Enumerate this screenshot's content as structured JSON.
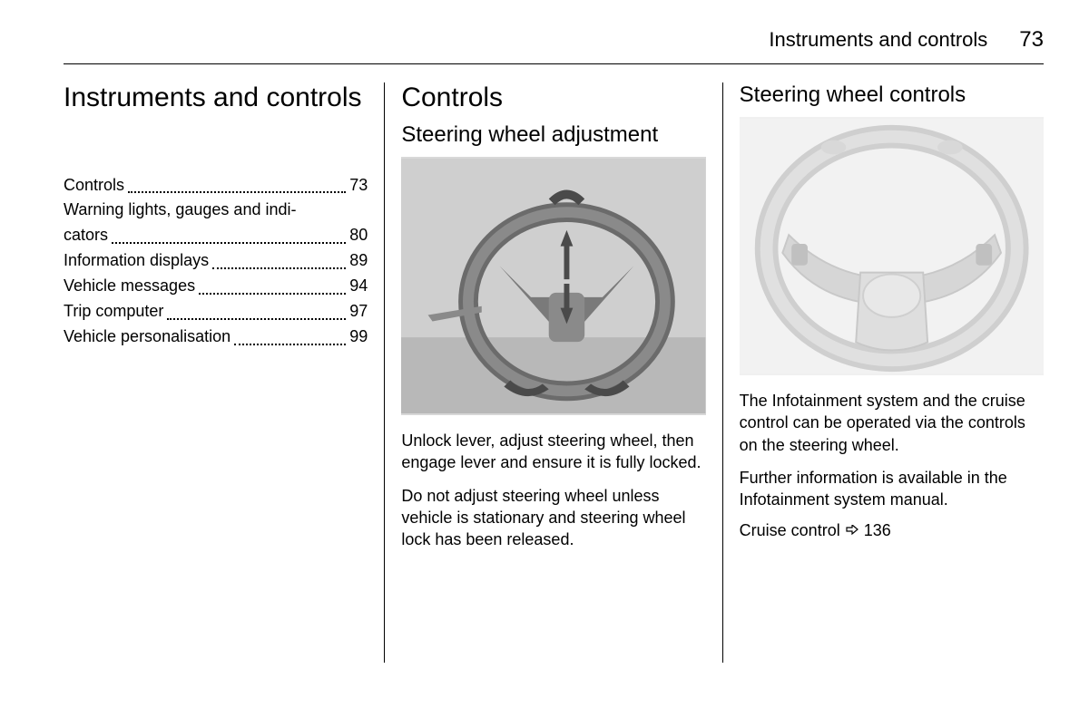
{
  "header": {
    "title": "Instruments and controls",
    "page": "73"
  },
  "col1": {
    "heading": "Instruments and controls",
    "toc": [
      {
        "label": "Controls",
        "page": "73",
        "multiline": false
      },
      {
        "label": "Warning lights, gauges and indi-",
        "label2": "cators",
        "page": "80",
        "multiline": true
      },
      {
        "label": "Information displays",
        "page": "89",
        "multiline": false
      },
      {
        "label": "Vehicle messages",
        "page": "94",
        "multiline": false
      },
      {
        "label": "Trip computer",
        "page": "97",
        "multiline": false
      },
      {
        "label": "Vehicle personalisation",
        "page": "99",
        "multiline": false
      }
    ]
  },
  "col2": {
    "heading": "Controls",
    "subheading": "Steering wheel adjustment",
    "figure_alt": "steering-wheel-adjustment-figure",
    "para1": "Unlock lever, adjust steering wheel, then engage lever and ensure it is fully locked.",
    "para2": "Do not adjust steering wheel unless vehicle is stationary and steering wheel lock has been released."
  },
  "col3": {
    "subheading": "Steering wheel controls",
    "figure_alt": "steering-wheel-controls-figure",
    "para1": "The Infotainment system and the cruise control can be operated via the controls on the steering wheel.",
    "para2": "Further information is available in the Infotainment system manual.",
    "xref_label": "Cruise control",
    "xref_page": "136"
  },
  "colors": {
    "text": "#000000",
    "background": "#ffffff",
    "figure_bg": "#d8d8d8",
    "figure_mid": "#a8a8a8",
    "figure_dark": "#6b6b6b",
    "figure_light": "#e8e8e8"
  }
}
